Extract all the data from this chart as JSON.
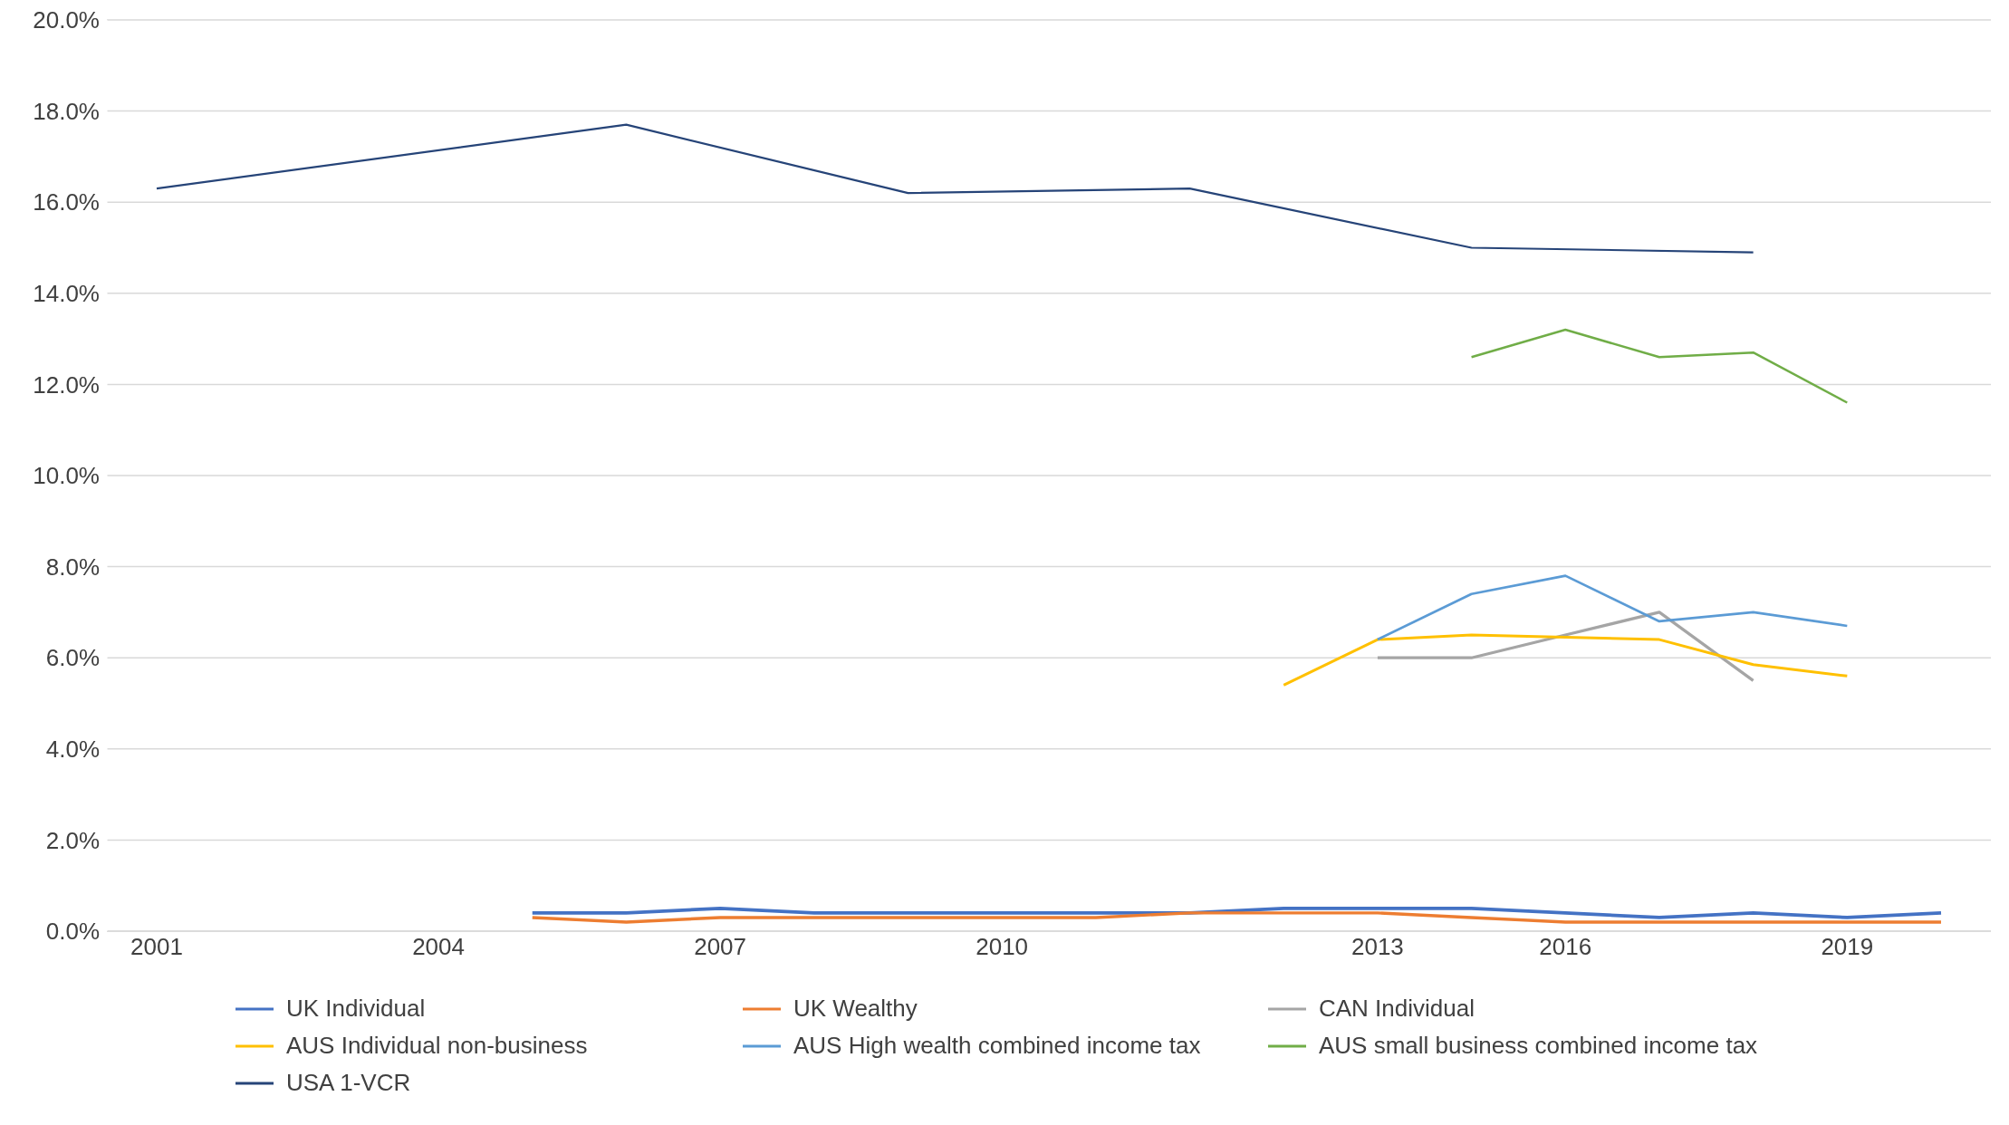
{
  "chart_data": {
    "type": "line",
    "categories": [
      "2001",
      null,
      null,
      "2004",
      null,
      null,
      "2007",
      null,
      null,
      "2010",
      null,
      null,
      null,
      "2013",
      null,
      "2016",
      null,
      null,
      "2019",
      null
    ],
    "series": [
      {
        "name": "UK Individual",
        "color": "#4472c4",
        "values": [
          null,
          null,
          null,
          null,
          0.4,
          0.4,
          0.5,
          0.4,
          0.4,
          0.4,
          0.4,
          0.4,
          0.5,
          0.5,
          0.5,
          0.4,
          0.3,
          0.4,
          0.3,
          0.4
        ]
      },
      {
        "name": "UK Wealthy",
        "color": "#ed7d31",
        "values": [
          null,
          null,
          null,
          null,
          0.3,
          0.2,
          0.3,
          0.3,
          0.3,
          0.3,
          0.3,
          0.4,
          0.4,
          0.4,
          0.3,
          0.2,
          0.2,
          0.2,
          0.2,
          0.2
        ]
      },
      {
        "name": "CAN Individual",
        "color": "#a5a5a5",
        "values": [
          null,
          null,
          null,
          null,
          null,
          null,
          null,
          null,
          null,
          null,
          null,
          null,
          null,
          6.0,
          6.0,
          6.5,
          7.0,
          5.5,
          null,
          null
        ]
      },
      {
        "name": "AUS Individual non-business",
        "color": "#ffc000",
        "values": [
          null,
          null,
          null,
          null,
          null,
          null,
          null,
          null,
          null,
          null,
          null,
          null,
          5.4,
          6.4,
          6.5,
          6.45,
          6.4,
          5.85,
          5.6,
          null
        ]
      },
      {
        "name": "AUS High wealth combined income tax",
        "color": "#5b9bd5",
        "values": [
          null,
          null,
          null,
          null,
          null,
          null,
          null,
          null,
          null,
          null,
          null,
          null,
          null,
          6.4,
          7.4,
          7.8,
          6.8,
          7.0,
          6.7,
          null
        ]
      },
      {
        "name": "AUS small business combined income tax",
        "color": "#70ad47",
        "values": [
          null,
          null,
          null,
          null,
          null,
          null,
          null,
          null,
          null,
          null,
          null,
          null,
          null,
          null,
          12.6,
          13.2,
          12.6,
          12.7,
          11.6,
          null
        ]
      },
      {
        "name": "USA 1-VCR",
        "color": "#264478",
        "values": [
          16.3,
          null,
          null,
          null,
          null,
          17.7,
          null,
          null,
          16.2,
          null,
          null,
          16.3,
          null,
          null,
          15.0,
          null,
          null,
          14.9,
          null,
          null
        ]
      }
    ],
    "ylim": [
      0,
      20
    ],
    "yticks": [
      {
        "value": 0,
        "label": "0.0%"
      },
      {
        "value": 2,
        "label": "2.0%"
      },
      {
        "value": 4,
        "label": "4.0%"
      },
      {
        "value": 6,
        "label": "6.0%"
      },
      {
        "value": 8,
        "label": "8.0%"
      },
      {
        "value": 10,
        "label": "10.0%"
      },
      {
        "value": 12,
        "label": "12.0%"
      },
      {
        "value": 14,
        "label": "14.0%"
      },
      {
        "value": 16,
        "label": "16.0%"
      },
      {
        "value": 18,
        "label": "18.0%"
      },
      {
        "value": 20,
        "label": "20.0%"
      }
    ],
    "grid": "y",
    "legend": "bottom",
    "marker": "none",
    "line_style": "solid"
  }
}
